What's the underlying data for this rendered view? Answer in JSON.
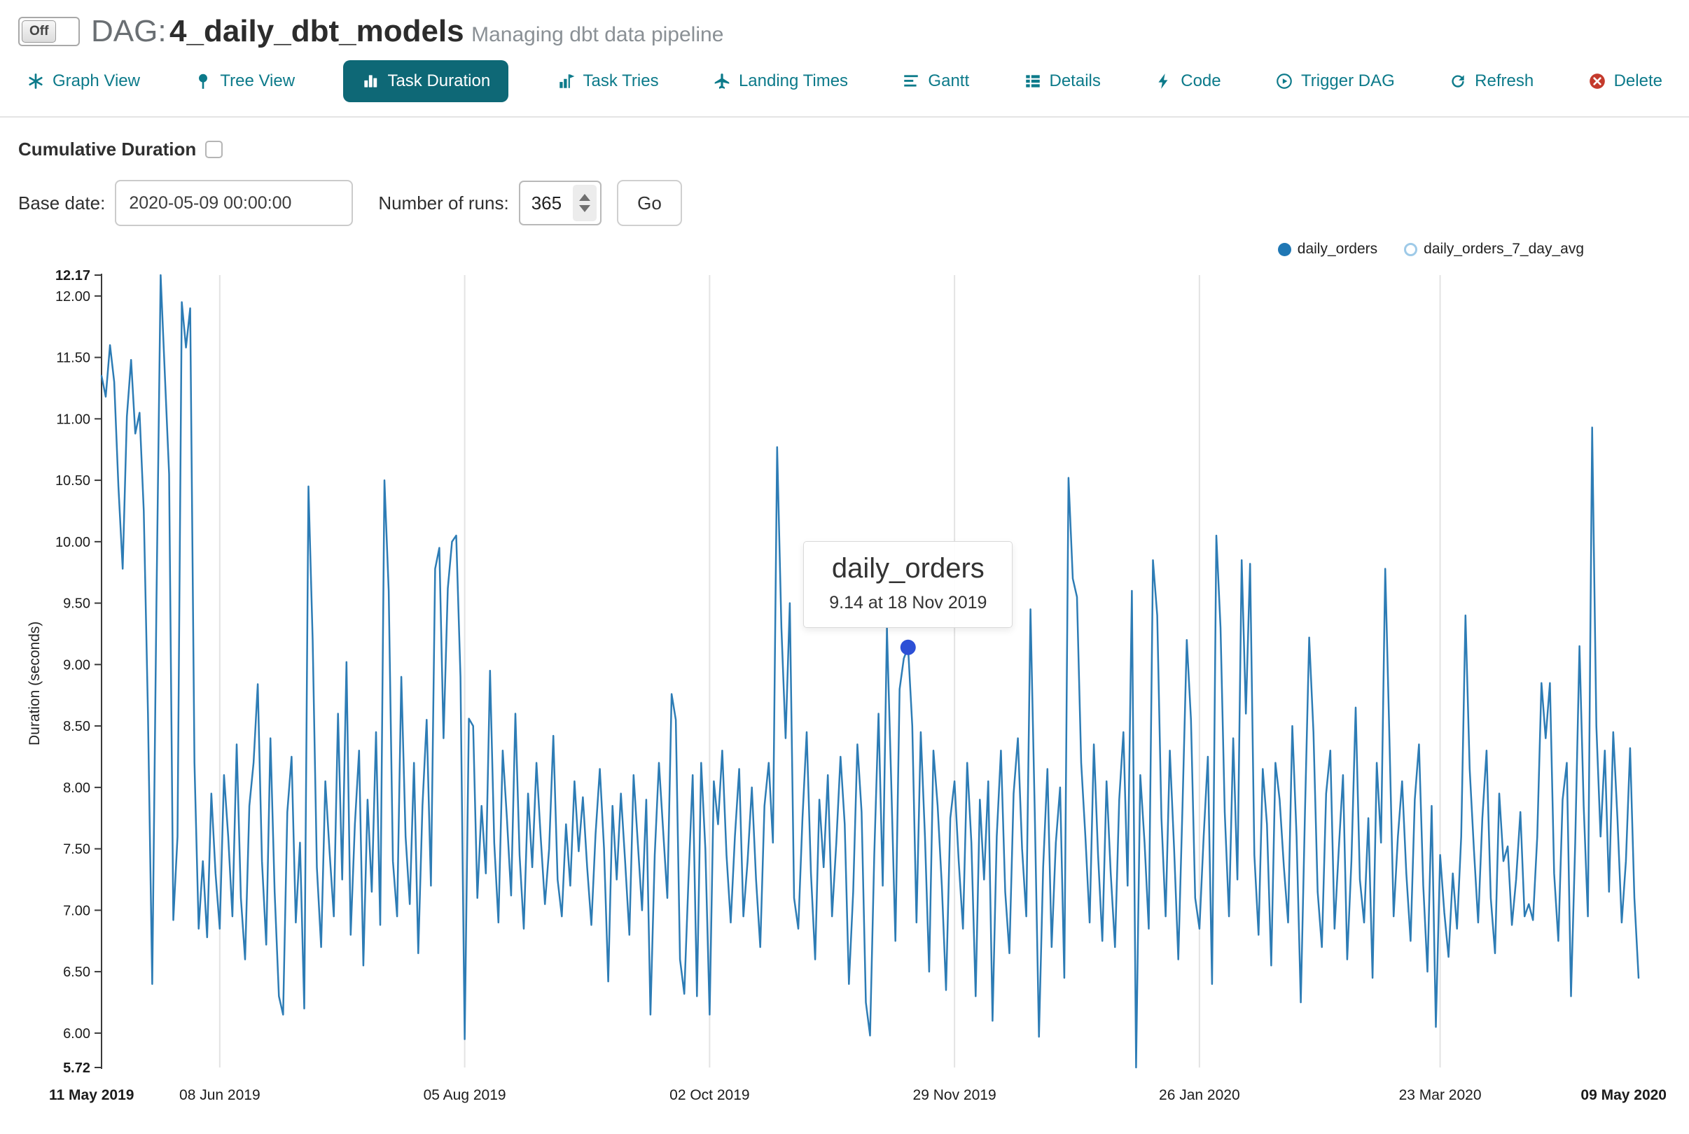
{
  "header": {
    "toggle_label": "Off",
    "dag_prefix": "DAG:",
    "dag_name": "4_daily_dbt_models",
    "subtitle": "Managing dbt data pipeline"
  },
  "tabs": [
    {
      "label": "Graph View",
      "active": false
    },
    {
      "label": "Tree View",
      "active": false
    },
    {
      "label": "Task Duration",
      "active": true
    },
    {
      "label": "Task Tries",
      "active": false
    },
    {
      "label": "Landing Times",
      "active": false
    },
    {
      "label": "Gantt",
      "active": false
    },
    {
      "label": "Details",
      "active": false
    },
    {
      "label": "Code",
      "active": false
    },
    {
      "label": "Trigger DAG",
      "active": false
    },
    {
      "label": "Refresh",
      "active": false
    },
    {
      "label": "Delete",
      "active": false
    }
  ],
  "controls": {
    "cumulative_label": "Cumulative Duration",
    "cumulative_checked": false,
    "base_date_label": "Base date:",
    "base_date_value": "2020-05-09 00:00:00",
    "num_runs_label": "Number of runs:",
    "num_runs_value": "365",
    "go_label": "Go"
  },
  "legend": [
    {
      "label": "daily_orders",
      "swatch": "filled",
      "color": "#1f77b4",
      "enabled": true
    },
    {
      "label": "daily_orders_7_day_avg",
      "swatch": "open",
      "color": "#9ecae8",
      "enabled": false
    }
  ],
  "colors": {
    "accent": "#0c7a8a",
    "active_tab_bg": "#0e6876",
    "danger": "#c43a2c",
    "line": "#2d7cb5",
    "marker": "#2d50d6",
    "grid": "#e3e3e3"
  },
  "chart_data": {
    "type": "line",
    "ylabel": "Duration (seconds)",
    "y_min": 5.72,
    "y_max": 12.17,
    "grid": "vertical-only",
    "legend_position": "top-right",
    "y_ticks": [
      {
        "v": 12.17,
        "label": "12.17",
        "bold": true
      },
      {
        "v": 12.0,
        "label": "12.00"
      },
      {
        "v": 11.5,
        "label": "11.50"
      },
      {
        "v": 11.0,
        "label": "11.00"
      },
      {
        "v": 10.5,
        "label": "10.50"
      },
      {
        "v": 10.0,
        "label": "10.00"
      },
      {
        "v": 9.5,
        "label": "9.50"
      },
      {
        "v": 9.0,
        "label": "9.00"
      },
      {
        "v": 8.5,
        "label": "8.50"
      },
      {
        "v": 8.0,
        "label": "8.00"
      },
      {
        "v": 7.5,
        "label": "7.50"
      },
      {
        "v": 7.0,
        "label": "7.00"
      },
      {
        "v": 6.5,
        "label": "6.50"
      },
      {
        "v": 6.0,
        "label": "6.00"
      },
      {
        "v": 5.72,
        "label": "5.72",
        "bold": true
      }
    ],
    "x_ticks": [
      {
        "day": 0,
        "label": "11 May 2019",
        "bold": true
      },
      {
        "day": 28,
        "label": "08 Jun 2019"
      },
      {
        "day": 86,
        "label": "05 Aug 2019"
      },
      {
        "day": 144,
        "label": "02 Oct 2019"
      },
      {
        "day": 202,
        "label": "29 Nov 2019"
      },
      {
        "day": 260,
        "label": "26 Jan 2020"
      },
      {
        "day": 317,
        "label": "23 Mar 2020"
      },
      {
        "day": 364,
        "label": "09 May 2020",
        "bold": true
      }
    ],
    "tooltip": {
      "title": "daily_orders",
      "text": "9.14 at 18 Nov 2019",
      "value": 9.14,
      "day": 191,
      "marker_color": "#2d50d6"
    },
    "series": [
      {
        "name": "daily_orders",
        "color": "#2d7cb5",
        "values": [
          11.35,
          11.18,
          11.6,
          11.3,
          10.45,
          9.78,
          11.02,
          11.48,
          10.88,
          11.05,
          10.25,
          8.6,
          6.4,
          9.5,
          12.17,
          11.35,
          10.55,
          6.92,
          7.6,
          11.95,
          11.58,
          11.9,
          8.2,
          6.85,
          7.4,
          6.78,
          7.95,
          7.3,
          6.85,
          8.1,
          7.6,
          6.95,
          8.35,
          7.1,
          6.6,
          7.85,
          8.2,
          8.84,
          7.4,
          6.72,
          8.4,
          7.15,
          6.3,
          6.15,
          7.8,
          8.25,
          6.9,
          7.55,
          6.2,
          10.45,
          9.2,
          7.35,
          6.7,
          8.05,
          7.48,
          6.95,
          8.6,
          7.25,
          9.02,
          6.8,
          7.7,
          8.3,
          6.55,
          7.9,
          7.15,
          8.45,
          6.88,
          10.5,
          9.6,
          7.4,
          6.95,
          8.9,
          7.6,
          7.05,
          8.2,
          6.65,
          7.85,
          8.55,
          7.2,
          9.78,
          9.95,
          8.4,
          9.62,
          10.0,
          10.05,
          8.9,
          5.95,
          8.56,
          8.5,
          7.1,
          7.85,
          7.3,
          8.95,
          7.55,
          6.9,
          8.3,
          7.75,
          7.12,
          8.6,
          7.45,
          6.85,
          7.95,
          7.35,
          8.2,
          7.6,
          7.05,
          7.5,
          8.42,
          7.25,
          6.95,
          7.7,
          7.2,
          8.05,
          7.48,
          7.92,
          7.35,
          6.88,
          7.62,
          8.15,
          7.5,
          6.42,
          7.85,
          7.25,
          7.95,
          7.4,
          6.8,
          8.1,
          7.55,
          7.0,
          7.9,
          6.15,
          7.45,
          8.2,
          7.65,
          7.1,
          8.76,
          8.55,
          6.6,
          6.32,
          7.25,
          8.1,
          6.3,
          8.2,
          7.5,
          6.15,
          8.05,
          7.7,
          8.3,
          7.45,
          6.9,
          7.6,
          8.15,
          6.95,
          7.4,
          8.0,
          7.25,
          6.7,
          7.85,
          8.2,
          7.55,
          10.77,
          9.3,
          8.4,
          9.5,
          7.1,
          6.85,
          7.75,
          8.45,
          7.3,
          6.6,
          7.9,
          7.35,
          8.1,
          6.95,
          7.55,
          8.25,
          7.7,
          6.4,
          7.15,
          8.35,
          7.8,
          6.25,
          5.98,
          7.45,
          8.6,
          7.2,
          9.3,
          8.05,
          6.75,
          8.8,
          9.05,
          9.14,
          8.5,
          6.9,
          8.45,
          7.6,
          6.5,
          8.3,
          7.85,
          7.2,
          6.35,
          7.75,
          8.05,
          7.4,
          6.85,
          8.2,
          7.55,
          6.3,
          7.9,
          7.25,
          8.05,
          6.1,
          7.6,
          8.3,
          7.15,
          6.65,
          7.95,
          8.4,
          7.5,
          6.95,
          9.45,
          7.8,
          5.97,
          7.35,
          8.15,
          6.7,
          7.55,
          8.0,
          6.45,
          10.52,
          9.7,
          9.55,
          8.2,
          7.6,
          6.9,
          8.35,
          7.45,
          6.75,
          8.05,
          7.3,
          6.7,
          7.9,
          8.45,
          7.2,
          9.6,
          5.72,
          8.1,
          7.55,
          6.85,
          9.85,
          9.4,
          7.75,
          6.95,
          8.3,
          7.5,
          6.6,
          7.85,
          9.2,
          8.55,
          7.1,
          6.85,
          7.6,
          8.25,
          6.4,
          10.05,
          9.3,
          7.8,
          6.95,
          8.4,
          7.25,
          9.85,
          8.6,
          9.82,
          7.45,
          6.8,
          8.15,
          7.7,
          6.55,
          8.2,
          7.9,
          7.35,
          6.9,
          8.5,
          7.6,
          6.25,
          7.8,
          9.22,
          8.45,
          7.15,
          6.7,
          7.95,
          8.3,
          6.85,
          7.5,
          8.1,
          6.6,
          7.4,
          8.65,
          7.25,
          6.9,
          7.75,
          6.45,
          8.2,
          7.55,
          9.78,
          8.4,
          6.95,
          7.6,
          8.05,
          7.3,
          6.75,
          7.9,
          8.35,
          7.2,
          6.5,
          7.85,
          6.05,
          7.45,
          6.98,
          6.62,
          7.3,
          6.85,
          7.6,
          9.4,
          8.15,
          7.5,
          6.9,
          7.75,
          8.3,
          7.1,
          6.65,
          7.95,
          7.4,
          7.52,
          6.88,
          7.25,
          7.8,
          6.95,
          7.05,
          6.92,
          7.6,
          8.85,
          8.4,
          8.85,
          7.3,
          6.75,
          7.9,
          8.2,
          6.3,
          7.55,
          9.15,
          7.85,
          6.95,
          10.93,
          8.5,
          7.6,
          8.3,
          7.15,
          8.45,
          7.75,
          6.9,
          7.4,
          8.32,
          7.1,
          6.45
        ]
      }
    ]
  }
}
